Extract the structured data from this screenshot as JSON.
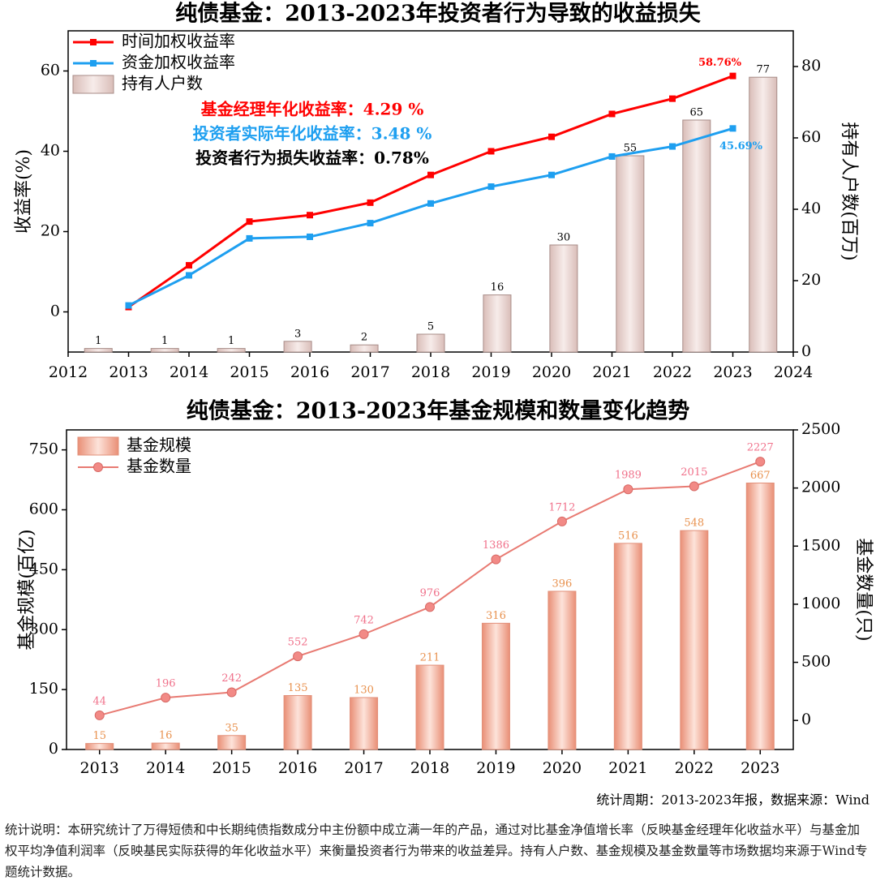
{
  "chart_data": [
    {
      "type": "combo",
      "title": "纯债基金：2013-2023年投资者行为导致的收益损失",
      "xlim": [
        2012,
        2024
      ],
      "xticks": [
        2012,
        2013,
        2014,
        2015,
        2016,
        2017,
        2018,
        2019,
        2020,
        2021,
        2022,
        2023,
        2024
      ],
      "ylim": [
        -10,
        70
      ],
      "yticks": [
        0,
        20,
        40,
        60
      ],
      "y2lim": [
        0,
        90
      ],
      "y2ticks": [
        0,
        20,
        40,
        60,
        80
      ],
      "ylabel": "收益率(%)",
      "y2label": "持有人户数(百万)",
      "series": [
        {
          "name": "时间加权收益率",
          "type": "line",
          "marker": "square",
          "color": "#ff0000",
          "x": [
            2013,
            2014,
            2015,
            2016,
            2017,
            2018,
            2019,
            2020,
            2021,
            2022,
            2023
          ],
          "values": [
            1.2,
            11.6,
            22.5,
            24.1,
            27.2,
            34.1,
            40.0,
            43.6,
            49.3,
            53.1,
            58.76
          ],
          "value_labels": [
            null,
            null,
            null,
            null,
            null,
            null,
            null,
            null,
            null,
            null,
            "58.76%"
          ]
        },
        {
          "name": "资金加权收益率",
          "type": "line",
          "marker": "square",
          "color": "#1e9ff0",
          "x": [
            2013,
            2014,
            2015,
            2016,
            2017,
            2018,
            2019,
            2020,
            2021,
            2022,
            2023
          ],
          "values": [
            1.6,
            9.1,
            18.3,
            18.7,
            22.1,
            27.0,
            31.2,
            34.1,
            38.7,
            41.2,
            45.69
          ],
          "value_labels": [
            null,
            null,
            null,
            null,
            null,
            null,
            null,
            null,
            null,
            null,
            "45.69%"
          ]
        },
        {
          "name": "持有人户数",
          "type": "bar",
          "axis": "y2",
          "color": "#ecd6d2",
          "data_labels": true,
          "x": [
            2012.5,
            2013.6,
            2014.7,
            2015.8,
            2016.9,
            2018.0,
            2019.1,
            2020.2,
            2021.3,
            2022.4,
            2023.5
          ],
          "values": [
            1,
            1,
            1,
            3,
            2,
            5,
            16,
            30,
            55,
            65,
            77
          ]
        }
      ],
      "annotations": [
        {
          "text": "基金经理年化收益率：4.29 %",
          "color": "#ff0000"
        },
        {
          "text": "投资者实际年化收益率：3.48 %",
          "color": "#1e9ff0"
        },
        {
          "text": "投资者行为损失收益率：0.78%",
          "color": "#000000"
        }
      ]
    },
    {
      "type": "combo",
      "title": "纯债基金：2013-2023年基金规模和数量变化趋势",
      "categories": [
        "2013",
        "2014",
        "2015",
        "2016",
        "2017",
        "2018",
        "2019",
        "2020",
        "2021",
        "2022",
        "2023"
      ],
      "ylim": [
        0,
        800
      ],
      "yticks": [
        0,
        150,
        300,
        450,
        600,
        750
      ],
      "y2lim": [
        -250,
        2500
      ],
      "y2ticks": [
        0,
        500,
        1000,
        1500,
        2000,
        2500
      ],
      "ylabel": "基金规模(百亿)",
      "y2label": "基金数量(只)",
      "series": [
        {
          "name": "基金规模",
          "type": "bar",
          "color": "#f0a28c",
          "label_color": "#e8914e",
          "data_labels": true,
          "values": [
            15,
            16,
            35,
            135,
            130,
            211,
            316,
            396,
            516,
            548,
            667
          ]
        },
        {
          "name": "基金数量",
          "type": "line",
          "axis": "y2",
          "marker": "circle",
          "color": "#e87a72",
          "label_color": "#f0708a",
          "data_labels": true,
          "values": [
            44,
            196,
            242,
            552,
            742,
            976,
            1386,
            1712,
            1989,
            2015,
            2227
          ]
        }
      ]
    }
  ],
  "footer": {
    "source": "统计周期：2013-2023年报，数据来源：Wind",
    "note": "统计说明：本研究统计了万得短债和中长期纯债指数成分中主份额中成立满一年的产品，通过对比基金净值增长率（反映基金经理年化收益水平）与基金加权平均净值利润率（反映基民实际获得的年化收益水平）来衡量投资者行为带来的收益差异。持有人户数、基金规模及基金数量等市场数据均来源于Wind专题统计数据。"
  }
}
